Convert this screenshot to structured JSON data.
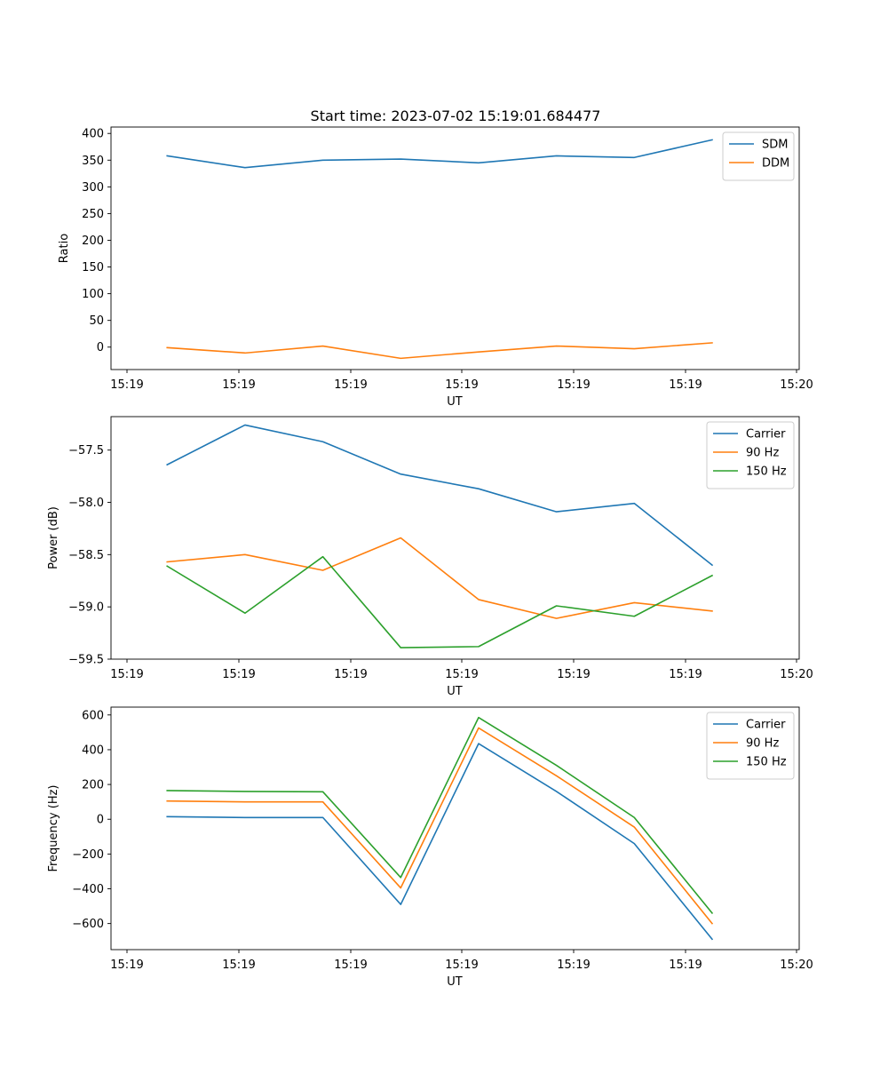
{
  "chart_data": [
    {
      "type": "line",
      "title": "Start time: 2023-07-02 15:19:01.684477",
      "xlabel": "UT",
      "ylabel": "Ratio",
      "x": [
        1,
        2,
        3,
        4,
        5,
        6,
        7,
        8
      ],
      "x_tick_labels": [
        "15:19",
        "15:19",
        "15:19",
        "15:19",
        "15:19",
        "15:19",
        "15:20"
      ],
      "ylim": [
        -42,
        412
      ],
      "yticks": [
        0,
        50,
        100,
        150,
        200,
        250,
        300,
        350,
        400
      ],
      "y_tick_labels": [
        "0",
        "50",
        "100",
        "150",
        "200",
        "250",
        "300",
        "350",
        "400"
      ],
      "legend_position": "top-right",
      "series": [
        {
          "name": "SDM",
          "color": "#1f77b4",
          "values": [
            358,
            336,
            350,
            352,
            345,
            358,
            355,
            388
          ]
        },
        {
          "name": "DDM",
          "color": "#ff7f0e",
          "values": [
            -1,
            -11,
            2,
            -21,
            -9,
            2,
            -3,
            8
          ]
        }
      ]
    },
    {
      "type": "line",
      "title": "",
      "xlabel": "UT",
      "ylabel": "Power (dB)",
      "x": [
        1,
        2,
        3,
        4,
        5,
        6,
        7,
        8
      ],
      "x_tick_labels": [
        "15:19",
        "15:19",
        "15:19",
        "15:19",
        "15:19",
        "15:19",
        "15:20"
      ],
      "ylim": [
        -59.5,
        -57.18
      ],
      "yticks": [
        -59.5,
        -59.0,
        -58.5,
        -58.0,
        -57.5
      ],
      "y_tick_labels": [
        "−59.5",
        "−59.0",
        "−58.5",
        "−58.0",
        "−57.5"
      ],
      "legend_position": "top-right",
      "series": [
        {
          "name": "Carrier",
          "color": "#1f77b4",
          "values": [
            -57.64,
            -57.26,
            -57.42,
            -57.73,
            -57.87,
            -58.09,
            -58.01,
            -58.6
          ]
        },
        {
          "name": "90 Hz",
          "color": "#ff7f0e",
          "values": [
            -58.57,
            -58.5,
            -58.65,
            -58.34,
            -58.93,
            -59.11,
            -58.96,
            -59.04
          ]
        },
        {
          "name": "150 Hz",
          "color": "#2ca02c",
          "values": [
            -58.61,
            -59.06,
            -58.52,
            -59.39,
            -59.38,
            -58.99,
            -59.09,
            -58.7
          ]
        }
      ]
    },
    {
      "type": "line",
      "title": "",
      "xlabel": "UT",
      "ylabel": "Frequency (Hz)",
      "x": [
        1,
        2,
        3,
        4,
        5,
        6,
        7,
        8
      ],
      "x_tick_labels": [
        "15:19",
        "15:19",
        "15:19",
        "15:19",
        "15:19",
        "15:19",
        "15:20"
      ],
      "ylim": [
        -750,
        645
      ],
      "yticks": [
        -600,
        -400,
        -200,
        0,
        200,
        400,
        600
      ],
      "y_tick_labels": [
        "−600",
        "−400",
        "−200",
        "0",
        "200",
        "400",
        "600"
      ],
      "legend_position": "top-right",
      "series": [
        {
          "name": "Carrier",
          "color": "#1f77b4",
          "values": [
            15,
            10,
            10,
            -490,
            435,
            160,
            -140,
            -690
          ]
        },
        {
          "name": "90 Hz",
          "color": "#ff7f0e",
          "values": [
            105,
            100,
            100,
            -395,
            525,
            250,
            -45,
            -600
          ]
        },
        {
          "name": "150 Hz",
          "color": "#2ca02c",
          "values": [
            165,
            160,
            158,
            -335,
            585,
            310,
            10,
            -540
          ]
        }
      ]
    }
  ]
}
